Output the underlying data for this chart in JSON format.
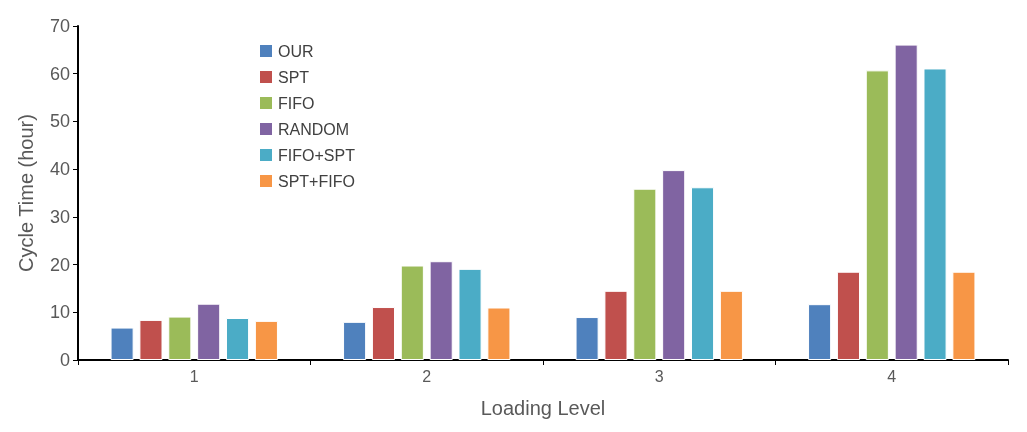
{
  "chart_data": {
    "type": "bar",
    "xlabel": "Loading Level",
    "ylabel": "Cycle Time (hour)",
    "categories": [
      "1",
      "2",
      "3",
      "4"
    ],
    "series": [
      {
        "name": "OUR",
        "color": "#4f81bd",
        "values": [
          6.8,
          8.0,
          9.0,
          11.7
        ]
      },
      {
        "name": "SPT",
        "color": "#c0504d",
        "values": [
          8.4,
          11.1,
          14.5,
          18.5
        ]
      },
      {
        "name": "FIFO",
        "color": "#9bbb59",
        "values": [
          9.1,
          19.8,
          35.9,
          60.7
        ]
      },
      {
        "name": "RANDOM",
        "color": "#8064a2",
        "values": [
          11.8,
          20.7,
          39.8,
          66.1
        ]
      },
      {
        "name": "FIFO+SPT",
        "color": "#4bacc6",
        "values": [
          8.8,
          19.1,
          36.2,
          61.1
        ]
      },
      {
        "name": "SPT+FIFO",
        "color": "#f79646",
        "values": [
          8.2,
          11.0,
          14.5,
          18.5
        ]
      }
    ],
    "ylim": [
      0,
      70
    ],
    "yticks": [
      0,
      10,
      20,
      30,
      40,
      50,
      60,
      70
    ],
    "grid": false,
    "legend": "top left"
  }
}
